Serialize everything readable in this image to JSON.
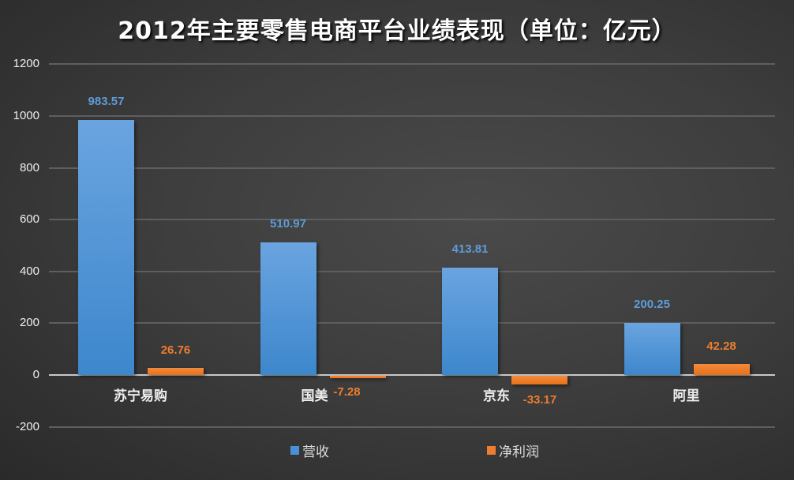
{
  "chart_data": {
    "type": "bar",
    "title": "2012年主要零售电商平台业绩表现（单位：亿元）",
    "categories": [
      "苏宁易购",
      "国美",
      "京东",
      "阿里"
    ],
    "series": [
      {
        "name": "营收",
        "color": "#4a90d9",
        "values": [
          983.57,
          510.97,
          413.81,
          200.25
        ]
      },
      {
        "name": "净利润",
        "color": "#ed7d31",
        "values": [
          26.76,
          -7.28,
          -33.17,
          42.28
        ]
      }
    ],
    "value_labels": {
      "营收": [
        "983.57",
        "510.97",
        "413.81",
        "200.25"
      ],
      "净利润": [
        "26.76",
        "-7.28",
        "-33.17",
        "42.28"
      ]
    },
    "xlabel": "",
    "ylabel": "",
    "ylim": [
      -200,
      1200
    ],
    "yticks": [
      "1200",
      "1000",
      "800",
      "600",
      "400",
      "200",
      "0",
      "-200"
    ],
    "grid": true,
    "legend_position": "bottom"
  }
}
